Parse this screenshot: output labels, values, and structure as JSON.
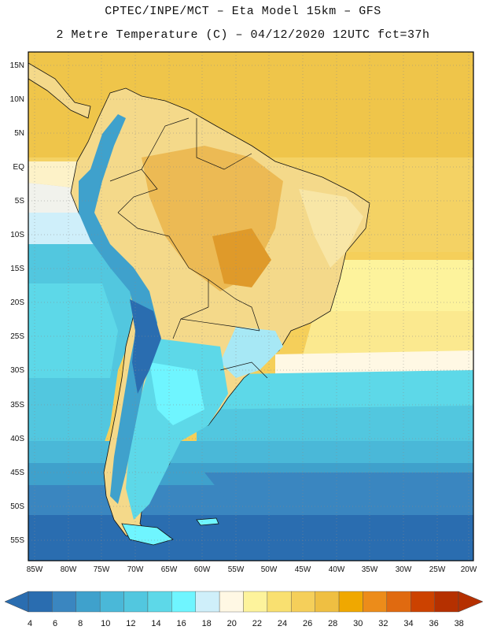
{
  "header": {
    "title_line1": "CPTEC/INPE/MCT –  Eta Model 15km – GFS",
    "title_line2": "2 Metre Temperature (C) – 04/12/2020 12UTC fct=37h"
  },
  "map": {
    "lat_labels": [
      "15N",
      "10N",
      "5N",
      "EQ",
      "5S",
      "10S",
      "15S",
      "20S",
      "25S",
      "30S",
      "35S",
      "40S",
      "45S",
      "50S",
      "55S"
    ],
    "lon_labels": [
      "85W",
      "80W",
      "75W",
      "70W",
      "65W",
      "60W",
      "55W",
      "50W",
      "45W",
      "40W",
      "35W",
      "30W",
      "25W",
      "20W"
    ]
  },
  "colorbar": {
    "labels": [
      "4",
      "6",
      "8",
      "10",
      "12",
      "14",
      "16",
      "18",
      "20",
      "22",
      "24",
      "26",
      "28",
      "30",
      "32",
      "34",
      "36",
      "38"
    ],
    "colors": [
      "#2a6db0",
      "#3a86c0",
      "#3fa1cc",
      "#4ab8d8",
      "#52c7df",
      "#5dd8e8",
      "#6ff5ff",
      "#cfeffa",
      "#fff8e4",
      "#fdf39c",
      "#f9e070",
      "#f5cf5a",
      "#efbf42",
      "#f0a800",
      "#ec8c1a",
      "#e06a10",
      "#cc4200",
      "#b53000"
    ]
  }
}
